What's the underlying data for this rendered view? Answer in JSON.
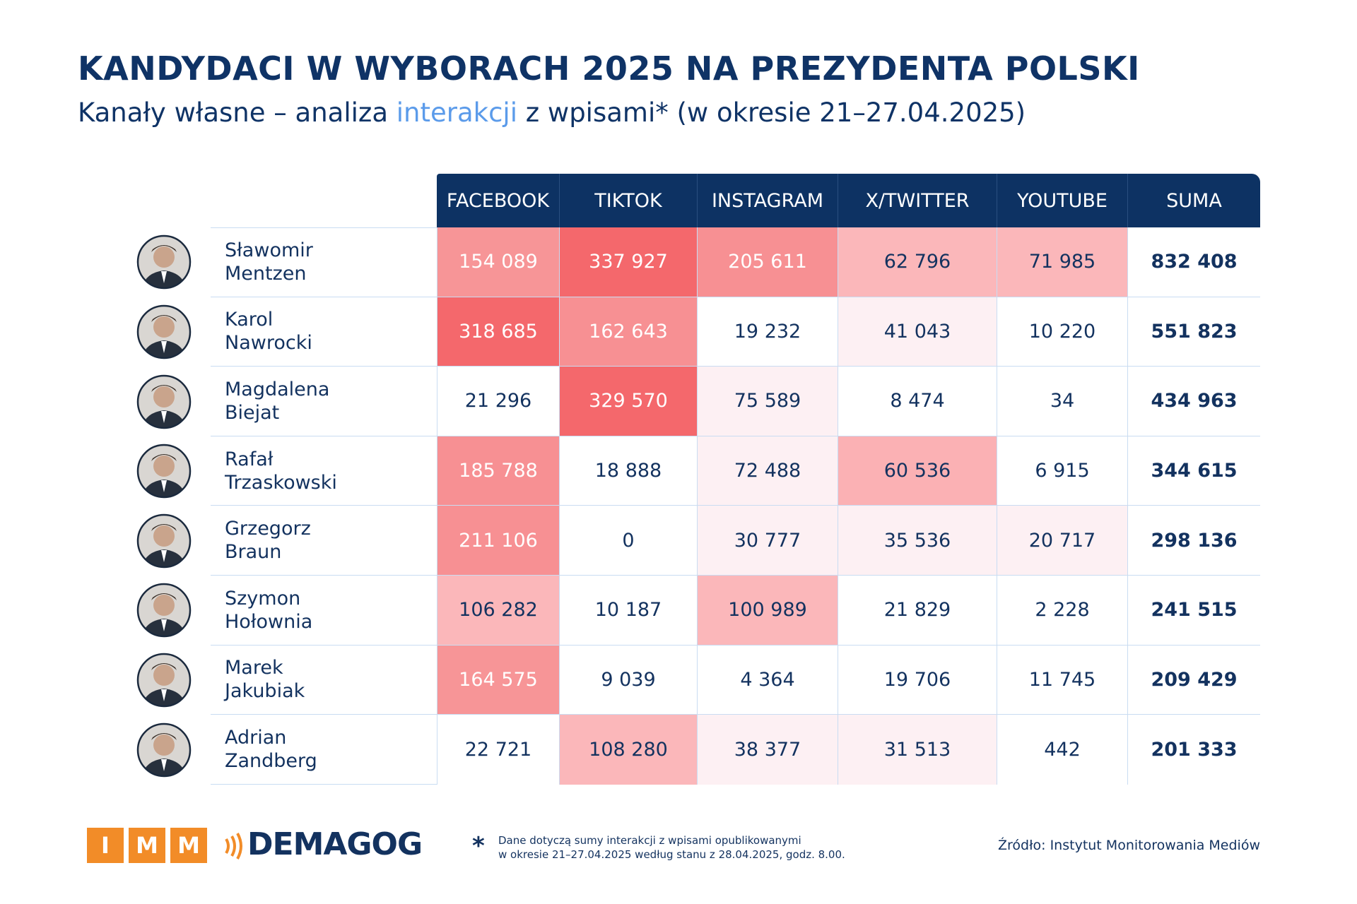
{
  "header": {
    "title": "KANDYDACI W WYBORACH 2025 NA PREZYDENTA POLSKI",
    "subtitle_before": "Kanały własne – analiza",
    "subtitle_highlight": "interakcji",
    "subtitle_after": "z wpisami* (w okresie 21–27.04.2025)"
  },
  "table": {
    "columns": [
      "FACEBOOK",
      "TIKTOK",
      "INSTAGRAM",
      "X/TWITTER",
      "YOUTUBE",
      "SUMA"
    ],
    "rows": [
      {
        "first": "Sławomir",
        "last": "Mentzen",
        "cells": [
          "154 089",
          "337 927",
          "205 611",
          "62 796",
          "71 985",
          "832 408"
        ]
      },
      {
        "first": "Karol",
        "last": "Nawrocki",
        "cells": [
          "318 685",
          "162 643",
          "19 232",
          "41 043",
          "10 220",
          "551 823"
        ]
      },
      {
        "first": "Magdalena",
        "last": "Biejat",
        "cells": [
          "21 296",
          "329 570",
          "75 589",
          "8 474",
          "34",
          "434 963"
        ]
      },
      {
        "first": "Rafał",
        "last": "Trzaskowski",
        "cells": [
          "185 788",
          "18 888",
          "72 488",
          "60 536",
          "6 915",
          "344 615"
        ]
      },
      {
        "first": "Grzegorz",
        "last": "Braun",
        "cells": [
          "211 106",
          "0",
          "30 777",
          "35 536",
          "20 717",
          "298 136"
        ]
      },
      {
        "first": "Szymon",
        "last": "Hołownia",
        "cells": [
          "106 282",
          "10 187",
          "100 989",
          "21 829",
          "2 228",
          "241 515"
        ]
      },
      {
        "first": "Marek",
        "last": "Jakubiak",
        "cells": [
          "164 575",
          "9 039",
          "4 364",
          "19 706",
          "11 745",
          "209 429"
        ]
      },
      {
        "first": "Adrian",
        "last": "Zandberg",
        "cells": [
          "22 721",
          "108 280",
          "38 377",
          "31 513",
          "442",
          "201 333"
        ]
      }
    ],
    "cell_colors": [
      [
        "#f79597",
        "#f4686c",
        "#f79093",
        "#fbb7ba",
        "#fbb7ba",
        "#ffffff"
      ],
      [
        "#f4686c",
        "#f79093",
        "#ffffff",
        "#fdf0f3",
        "#ffffff",
        "#ffffff"
      ],
      [
        "#ffffff",
        "#f4686c",
        "#fdf0f3",
        "#ffffff",
        "#ffffff",
        "#ffffff"
      ],
      [
        "#f79093",
        "#ffffff",
        "#fdf0f3",
        "#fbb1b4",
        "#ffffff",
        "#ffffff"
      ],
      [
        "#f79093",
        "#ffffff",
        "#fdf0f3",
        "#fdf0f3",
        "#fdf0f3",
        "#ffffff"
      ],
      [
        "#fbb7ba",
        "#ffffff",
        "#fbb7ba",
        "#ffffff",
        "#ffffff",
        "#ffffff"
      ],
      [
        "#f79597",
        "#ffffff",
        "#ffffff",
        "#ffffff",
        "#ffffff",
        "#ffffff"
      ],
      [
        "#ffffff",
        "#fbb7ba",
        "#fdf0f3",
        "#fdf0f3",
        "#ffffff",
        "#ffffff"
      ]
    ]
  },
  "footer": {
    "logo_letters": [
      "I",
      "M",
      "M"
    ],
    "brand": "DEMAGOG",
    "note_mark": "*",
    "note_lines": [
      "Dane dotyczą sumy interakcji z wpisami opublikowanymi",
      "w okresie 21–27.04.2025 według stanu z 28.04.2025, godz. 8.00."
    ],
    "source": "Źródło: Instytut Monitorowania Mediów"
  }
}
